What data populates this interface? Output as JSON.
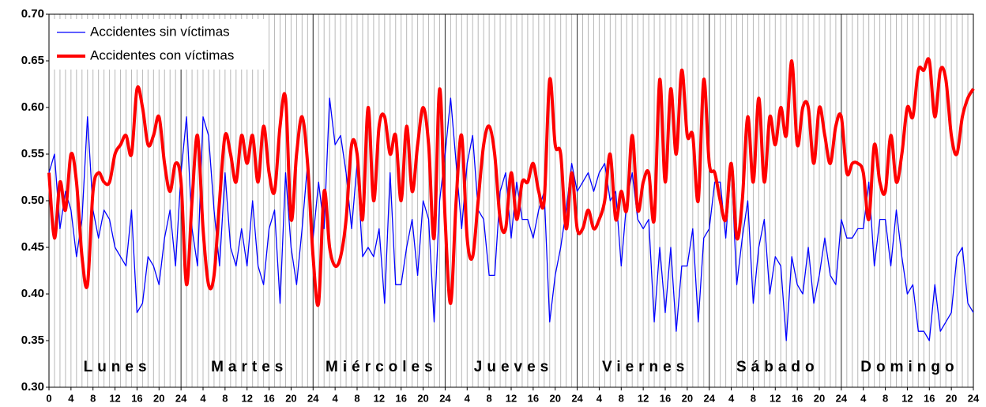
{
  "chart_data": {
    "type": "line",
    "x": [
      0,
      1,
      2,
      3,
      4,
      5,
      6,
      7,
      8,
      9,
      10,
      11,
      12,
      13,
      14,
      15,
      16,
      17,
      18,
      19,
      20,
      21,
      22,
      23,
      24,
      25,
      26,
      27,
      28,
      29,
      30,
      31,
      32,
      33,
      34,
      35,
      36,
      37,
      38,
      39,
      40,
      41,
      42,
      43,
      44,
      45,
      46,
      47,
      48,
      49,
      50,
      51,
      52,
      53,
      54,
      55,
      56,
      57,
      58,
      59,
      60,
      61,
      62,
      63,
      64,
      65,
      66,
      67,
      68,
      69,
      70,
      71,
      72,
      73,
      74,
      75,
      76,
      77,
      78,
      79,
      80,
      81,
      82,
      83,
      84,
      85,
      86,
      87,
      88,
      89,
      90,
      91,
      92,
      93,
      94,
      95,
      96,
      97,
      98,
      99,
      100,
      101,
      102,
      103,
      104,
      105,
      106,
      107,
      108,
      109,
      110,
      111,
      112,
      113,
      114,
      115,
      116,
      117,
      118,
      119,
      120,
      121,
      122,
      123,
      124,
      125,
      126,
      127,
      128,
      129,
      130,
      131,
      132,
      133,
      134,
      135,
      136,
      137,
      138,
      139,
      140,
      141,
      142,
      143,
      144,
      145,
      146,
      147,
      148,
      149,
      150,
      151,
      152,
      153,
      154,
      155,
      156,
      157,
      158,
      159,
      160,
      161,
      162,
      163,
      164,
      165,
      166,
      167,
      168
    ],
    "series": [
      {
        "name": "Accidentes sin víctimas",
        "color": "#0000ff",
        "width": 1.3,
        "values": [
          0.53,
          0.55,
          0.47,
          0.51,
          0.49,
          0.44,
          0.48,
          0.59,
          0.49,
          0.46,
          0.49,
          0.48,
          0.45,
          0.44,
          0.43,
          0.49,
          0.38,
          0.39,
          0.44,
          0.43,
          0.41,
          0.46,
          0.49,
          0.43,
          0.53,
          0.59,
          0.47,
          0.43,
          0.59,
          0.57,
          0.49,
          0.43,
          0.53,
          0.45,
          0.43,
          0.47,
          0.43,
          0.5,
          0.43,
          0.41,
          0.47,
          0.49,
          0.39,
          0.53,
          0.45,
          0.41,
          0.47,
          0.54,
          0.46,
          0.52,
          0.47,
          0.61,
          0.56,
          0.57,
          0.53,
          0.47,
          0.54,
          0.44,
          0.45,
          0.44,
          0.47,
          0.39,
          0.53,
          0.41,
          0.41,
          0.45,
          0.48,
          0.42,
          0.5,
          0.48,
          0.37,
          0.5,
          0.55,
          0.61,
          0.54,
          0.47,
          0.54,
          0.57,
          0.49,
          0.48,
          0.42,
          0.42,
          0.51,
          0.53,
          0.46,
          0.52,
          0.48,
          0.48,
          0.46,
          0.49,
          0.51,
          0.37,
          0.42,
          0.45,
          0.49,
          0.54,
          0.51,
          0.52,
          0.53,
          0.51,
          0.53,
          0.54,
          0.5,
          0.51,
          0.43,
          0.5,
          0.53,
          0.48,
          0.47,
          0.48,
          0.37,
          0.45,
          0.38,
          0.45,
          0.36,
          0.43,
          0.43,
          0.47,
          0.37,
          0.46,
          0.47,
          0.52,
          0.52,
          0.46,
          0.54,
          0.41,
          0.46,
          0.5,
          0.39,
          0.45,
          0.48,
          0.4,
          0.44,
          0.43,
          0.35,
          0.44,
          0.41,
          0.4,
          0.45,
          0.39,
          0.42,
          0.46,
          0.42,
          0.41,
          0.48,
          0.46,
          0.46,
          0.47,
          0.47,
          0.52,
          0.43,
          0.48,
          0.48,
          0.43,
          0.49,
          0.44,
          0.4,
          0.41,
          0.36,
          0.36,
          0.35,
          0.41,
          0.36,
          0.37,
          0.38,
          0.44,
          0.45,
          0.39,
          0.38
        ]
      },
      {
        "name": "Accidentes con víctimas",
        "color": "#ff0000",
        "width": 4,
        "values": [
          0.53,
          0.46,
          0.52,
          0.49,
          0.55,
          0.52,
          0.44,
          0.41,
          0.51,
          0.53,
          0.52,
          0.52,
          0.55,
          0.56,
          0.57,
          0.55,
          0.62,
          0.6,
          0.56,
          0.57,
          0.59,
          0.54,
          0.51,
          0.54,
          0.52,
          0.41,
          0.5,
          0.57,
          0.47,
          0.41,
          0.42,
          0.5,
          0.57,
          0.55,
          0.52,
          0.57,
          0.54,
          0.57,
          0.52,
          0.58,
          0.53,
          0.51,
          0.58,
          0.61,
          0.48,
          0.55,
          0.59,
          0.54,
          0.44,
          0.39,
          0.51,
          0.45,
          0.43,
          0.44,
          0.48,
          0.56,
          0.55,
          0.48,
          0.6,
          0.5,
          0.58,
          0.59,
          0.55,
          0.57,
          0.5,
          0.58,
          0.51,
          0.56,
          0.6,
          0.56,
          0.46,
          0.62,
          0.48,
          0.39,
          0.5,
          0.57,
          0.46,
          0.44,
          0.5,
          0.56,
          0.58,
          0.55,
          0.48,
          0.47,
          0.53,
          0.48,
          0.52,
          0.52,
          0.54,
          0.51,
          0.5,
          0.63,
          0.56,
          0.55,
          0.47,
          0.53,
          0.47,
          0.47,
          0.49,
          0.47,
          0.48,
          0.5,
          0.55,
          0.48,
          0.51,
          0.49,
          0.57,
          0.49,
          0.52,
          0.53,
          0.48,
          0.63,
          0.52,
          0.62,
          0.55,
          0.64,
          0.57,
          0.57,
          0.5,
          0.63,
          0.54,
          0.53,
          0.5,
          0.48,
          0.54,
          0.46,
          0.5,
          0.59,
          0.52,
          0.61,
          0.52,
          0.59,
          0.56,
          0.6,
          0.57,
          0.65,
          0.56,
          0.6,
          0.6,
          0.54,
          0.6,
          0.57,
          0.54,
          0.58,
          0.59,
          0.53,
          0.54,
          0.54,
          0.53,
          0.48,
          0.56,
          0.52,
          0.51,
          0.57,
          0.52,
          0.55,
          0.6,
          0.59,
          0.64,
          0.64,
          0.65,
          0.59,
          0.64,
          0.63,
          0.57,
          0.55,
          0.59,
          0.61,
          0.62
        ]
      }
    ],
    "xlim": [
      0,
      168
    ],
    "xticks": [
      0,
      4,
      8,
      12,
      16,
      20,
      24,
      {
        "value": 28,
        "label": "4"
      },
      {
        "value": 32,
        "label": "8"
      },
      {
        "value": 36,
        "label": "12"
      },
      {
        "value": 40,
        "label": "16"
      },
      {
        "value": 44,
        "label": "20"
      },
      {
        "value": 48,
        "label": "24"
      },
      {
        "value": 52,
        "label": "4"
      },
      {
        "value": 56,
        "label": "8"
      },
      {
        "value": 60,
        "label": "12"
      },
      {
        "value": 64,
        "label": "16"
      },
      {
        "value": 68,
        "label": "20"
      },
      {
        "value": 72,
        "label": "24"
      },
      {
        "value": 76,
        "label": "4"
      },
      {
        "value": 80,
        "label": "8"
      },
      {
        "value": 84,
        "label": "12"
      },
      {
        "value": 88,
        "label": "16"
      },
      {
        "value": 92,
        "label": "20"
      },
      {
        "value": 96,
        "label": "24"
      },
      {
        "value": 100,
        "label": "4"
      },
      {
        "value": 104,
        "label": "8"
      },
      {
        "value": 108,
        "label": "12"
      },
      {
        "value": 112,
        "label": "16"
      },
      {
        "value": 116,
        "label": "20"
      },
      {
        "value": 120,
        "label": "24"
      },
      {
        "value": 124,
        "label": "4"
      },
      {
        "value": 128,
        "label": "8"
      },
      {
        "value": 132,
        "label": "12"
      },
      {
        "value": 136,
        "label": "16"
      },
      {
        "value": 140,
        "label": "20"
      },
      {
        "value": 144,
        "label": "24"
      },
      {
        "value": 148,
        "label": "4"
      },
      {
        "value": 152,
        "label": "8"
      },
      {
        "value": 156,
        "label": "12"
      },
      {
        "value": 160,
        "label": "16"
      },
      {
        "value": 164,
        "label": "20"
      },
      {
        "value": 168,
        "label": "24"
      }
    ],
    "ylim": [
      0.3,
      0.7
    ],
    "yticks": [
      {
        "value": 0.3,
        "label": "0.30"
      },
      {
        "value": 0.35,
        "label": "0.35"
      },
      {
        "value": 0.4,
        "label": "0.40"
      },
      {
        "value": 0.45,
        "label": "0.45"
      },
      {
        "value": 0.5,
        "label": "0.50"
      },
      {
        "value": 0.55,
        "label": "0.55"
      },
      {
        "value": 0.6,
        "label": "0.60"
      },
      {
        "value": 0.65,
        "label": "0.65"
      },
      {
        "value": 0.7,
        "label": "0.70"
      }
    ],
    "day_labels": [
      "Lunes",
      "Martes",
      "Miércoles",
      "Jueves",
      "Viernes",
      "Sábado",
      "Domingo"
    ],
    "grid": true,
    "legend": "upper left"
  }
}
